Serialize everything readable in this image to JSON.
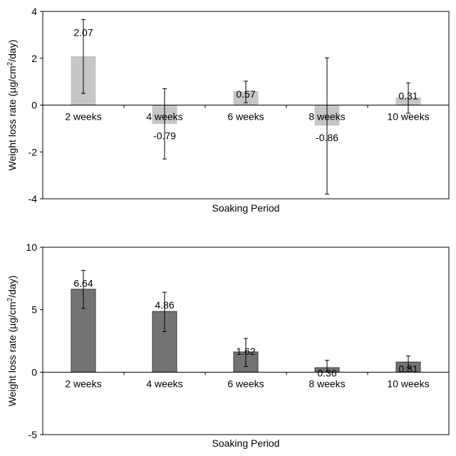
{
  "chart_data": [
    {
      "type": "bar",
      "categories": [
        "2 weeks",
        "4 weeks",
        "6 weeks",
        "8 weeks",
        "10 weeks"
      ],
      "values": [
        2.07,
        -0.79,
        0.57,
        -0.86,
        0.31
      ],
      "data_labels": [
        "2.07",
        "-0.79",
        "0.57",
        "-0.86",
        "0.31"
      ],
      "error_low": [
        0.5,
        -2.3,
        0.1,
        -3.8,
        -0.35
      ],
      "error_high": [
        3.65,
        0.7,
        1.02,
        2.02,
        0.95
      ],
      "xlabel": "Soaking Period",
      "ylabel_pre": "Weight loss rate (µg/cm",
      "ylabel_sup": "2",
      "ylabel_post": "/day)",
      "ylim": [
        -4,
        4
      ],
      "yticks": [
        -4,
        -2,
        0,
        2,
        4
      ],
      "ytick_labels": [
        "-4",
        "-2",
        "0",
        "2",
        "4"
      ],
      "bar_color": "#c6c6c6",
      "bar_stroke": "#c6c6c6",
      "grid": false
    },
    {
      "type": "bar",
      "categories": [
        "2 weeks",
        "4 weeks",
        "6 weeks",
        "8 weeks",
        "10 weeks"
      ],
      "values": [
        6.64,
        4.86,
        1.62,
        0.36,
        0.81
      ],
      "data_labels": [
        "6.64",
        "4.86",
        "1.62",
        "0.36",
        "0.81"
      ],
      "error_low": [
        5.1,
        3.25,
        0.45,
        0.0,
        0.35
      ],
      "error_high": [
        8.15,
        6.4,
        2.7,
        0.95,
        1.3
      ],
      "xlabel": "Soaking Period",
      "ylabel_pre": "Weight loss rate (µg/cm",
      "ylabel_sup": "2",
      "ylabel_post": "/day)",
      "ylim": [
        -5,
        10
      ],
      "yticks": [
        -5,
        0,
        5,
        10
      ],
      "ytick_labels": [
        "-5",
        "0",
        "5",
        "10"
      ],
      "bar_color": "#737373",
      "bar_stroke": "#3a3a3a",
      "grid": false
    }
  ]
}
